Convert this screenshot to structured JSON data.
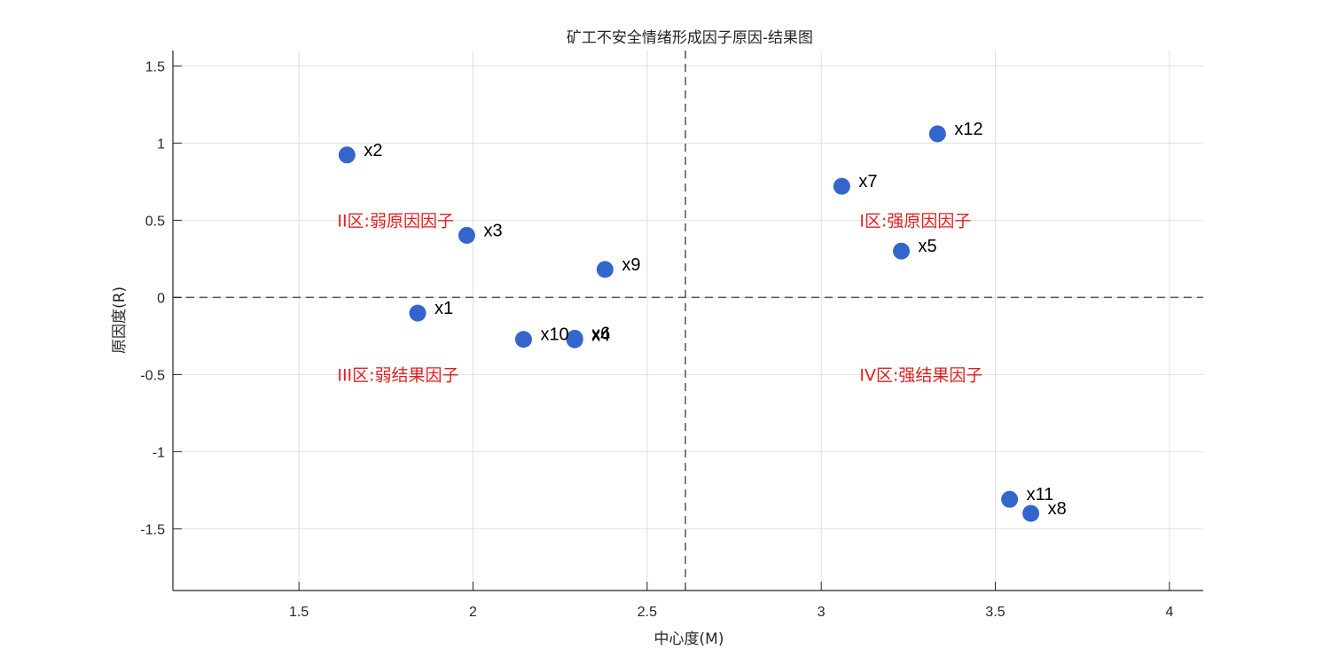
{
  "chart_data": {
    "type": "scatter",
    "title": "矿工不安全情绪形成因子原因-结果图",
    "xlabel": "中心度(M)",
    "ylabel": "原因度(R)",
    "xlim": [
      1.138,
      4.097
    ],
    "ylim": [
      -1.9,
      1.6
    ],
    "xticks": [
      1.5,
      2,
      2.5,
      3,
      3.5,
      4
    ],
    "xtick_labels": [
      "1.5",
      "2",
      "2.5",
      "3",
      "3.5",
      "4"
    ],
    "yticks": [
      -1.5,
      -1,
      -0.5,
      0,
      0.5,
      1,
      1.5
    ],
    "ytick_labels": [
      "-1.5",
      "-1",
      "-0.5",
      "0",
      "0.5",
      "1",
      "1.5"
    ],
    "grid": true,
    "legend": null,
    "marker_color": "#3366cc",
    "reference_lines": {
      "vertical_x": 2.61,
      "horizontal_y": 0,
      "style": "dashed",
      "color": "#555555"
    },
    "points": [
      {
        "label": "x1",
        "x": 1.841,
        "y": -0.102
      },
      {
        "label": "x2",
        "x": 1.638,
        "y": 0.923
      },
      {
        "label": "x3",
        "x": 1.982,
        "y": 0.402
      },
      {
        "label": "x4",
        "x": 2.292,
        "y": -0.275
      },
      {
        "label": "x5",
        "x": 3.23,
        "y": 0.3
      },
      {
        "label": "x6",
        "x": 2.292,
        "y": -0.265
      },
      {
        "label": "x7",
        "x": 3.059,
        "y": 0.72
      },
      {
        "label": "x8",
        "x": 3.602,
        "y": -1.4
      },
      {
        "label": "x9",
        "x": 2.379,
        "y": 0.181
      },
      {
        "label": "x10",
        "x": 2.145,
        "y": -0.272
      },
      {
        "label": "x11",
        "x": 3.541,
        "y": -1.309
      },
      {
        "label": "x12",
        "x": 3.334,
        "y": 1.06
      }
    ],
    "annotations": [
      {
        "text": "I区:强原因因子",
        "x": 3.11,
        "y": 0.5,
        "color": "#e02020"
      },
      {
        "text": "II区:弱原因因子",
        "x": 1.61,
        "y": 0.5,
        "color": "#e02020"
      },
      {
        "text": "III区:弱结果因子",
        "x": 1.61,
        "y": -0.5,
        "color": "#e02020"
      },
      {
        "text": "IV区:强结果因子",
        "x": 3.11,
        "y": -0.5,
        "color": "#e02020"
      }
    ]
  }
}
